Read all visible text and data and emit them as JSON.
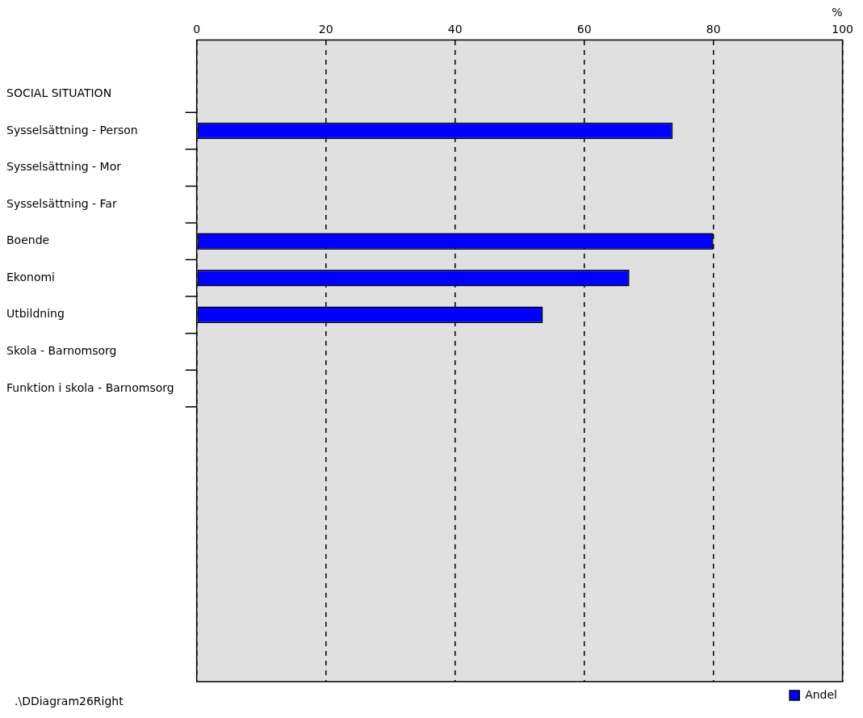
{
  "chart_data": {
    "type": "bar",
    "orientation": "horizontal",
    "categories": [
      "SOCIAL SITUATION",
      "Sysselsättning - Person",
      "Sysselsättning - Mor",
      "Sysselsättning - Far",
      "Boende",
      "Ekonomi",
      "Utbildning",
      "Skola - Barnomsorg",
      "Funktion i skola - Barnomsorg"
    ],
    "series": [
      {
        "name": "Andel",
        "color": "#0000ff",
        "values": [
          null,
          73.7,
          null,
          null,
          80,
          67,
          53.6,
          null,
          null
        ]
      }
    ],
    "xlabel": "%",
    "xlim": [
      0,
      100
    ],
    "xticks": [
      0,
      20,
      40,
      60,
      80,
      100
    ],
    "grid": "x",
    "line_style": "dashed",
    "legend": "bottom right",
    "annotations": [
      ".\\DDiagram26Right"
    ]
  }
}
